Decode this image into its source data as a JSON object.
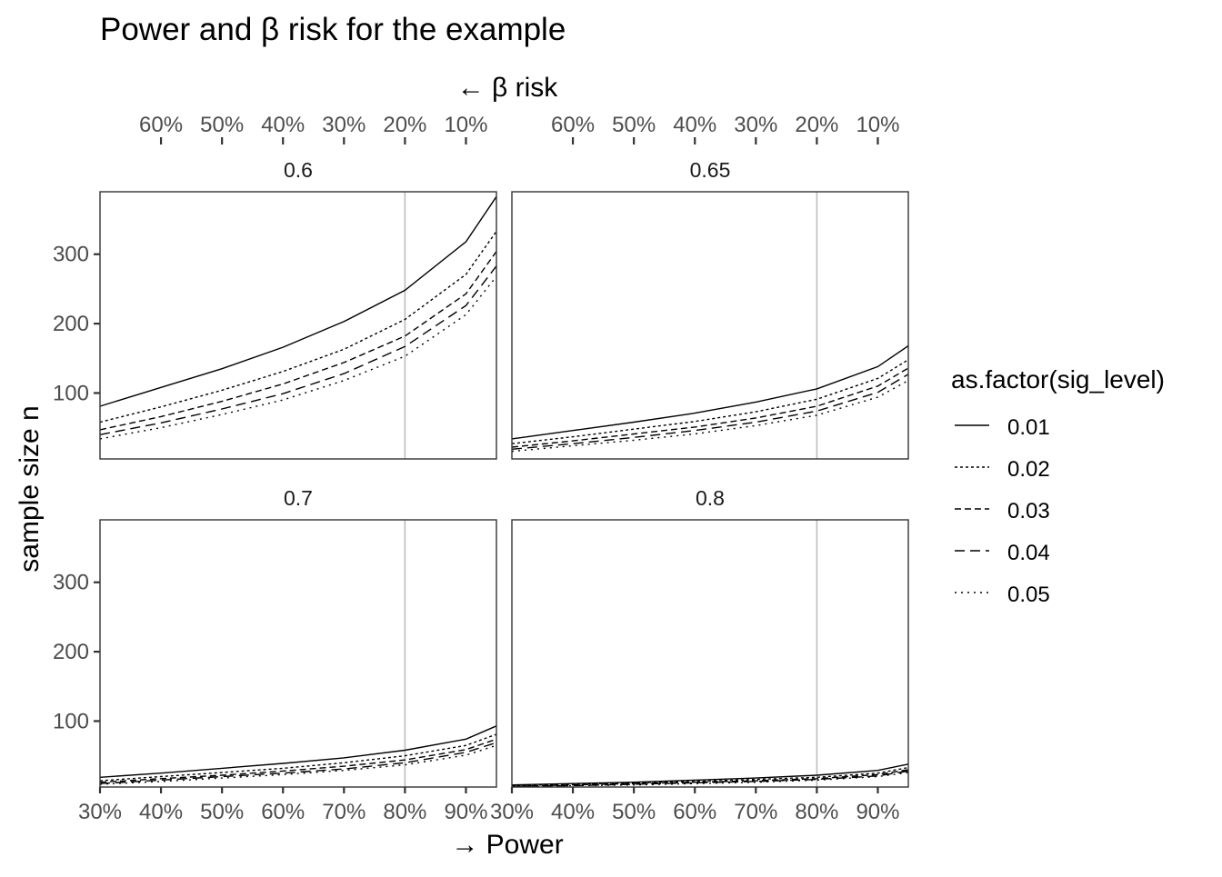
{
  "chart_data": {
    "type": "line",
    "title": "Power and β risk for the example",
    "xlabel": "→ Power",
    "secondary_xlabel": "← β risk",
    "ylabel": "sample size n",
    "xlim": [
      0.3,
      0.95
    ],
    "ylim": [
      5,
      390
    ],
    "x_ticks": [
      "30%",
      "40%",
      "50%",
      "60%",
      "70%",
      "80%",
      "90%"
    ],
    "top_ticks": [
      "60%",
      "50%",
      "40%",
      "30%",
      "20%",
      "10%"
    ],
    "y_ticks": [
      "100",
      "200",
      "300"
    ],
    "reference_line_x": 0.8,
    "grid": false,
    "legend": {
      "title": "as.factor(sig_level)",
      "position": "right",
      "entries": [
        {
          "label": "0.01",
          "dash": "solid"
        },
        {
          "label": "0.02",
          "dash": "dotted"
        },
        {
          "label": "0.03",
          "dash": "dashed-short"
        },
        {
          "label": "0.04",
          "dash": "dashed-long"
        },
        {
          "label": "0.05",
          "dash": "dotted-sparse"
        }
      ]
    },
    "x": [
      0.3,
      0.4,
      0.5,
      0.6,
      0.7,
      0.8,
      0.9,
      0.95
    ],
    "panels": [
      {
        "label": "0.6",
        "series": [
          {
            "name": "0.01",
            "values": [
              81,
              108,
              135,
              166,
              203,
              248,
              318,
              383
            ]
          },
          {
            "name": "0.02",
            "values": [
              58,
              80,
              104,
              131,
              163,
              206,
              271,
              333
            ]
          },
          {
            "name": "0.03",
            "values": [
              47,
              66,
              88,
              113,
              144,
              182,
              243,
              304
            ]
          },
          {
            "name": "0.04",
            "values": [
              40,
              57,
              77,
              99,
              128,
              167,
              226,
              283
            ]
          },
          {
            "name": "0.05",
            "values": [
              34,
              50,
              69,
              90,
              118,
              153,
              213,
              268
            ]
          }
        ]
      },
      {
        "label": "0.65",
        "series": [
          {
            "name": "0.01",
            "values": [
              34,
              46,
              58,
              71,
              87,
              106,
              138,
              168
            ]
          },
          {
            "name": "0.02",
            "values": [
              27,
              37,
              48,
              59,
              73,
              91,
              121,
              148
            ]
          },
          {
            "name": "0.03",
            "values": [
              22,
              31,
              41,
              51,
              64,
              81,
              110,
              136
            ]
          },
          {
            "name": "0.04",
            "values": [
              19,
              27,
              36,
              46,
              58,
              74,
              101,
              127
            ]
          },
          {
            "name": "0.05",
            "values": [
              16,
              24,
              32,
              41,
              53,
              68,
              94,
              118
            ]
          }
        ]
      },
      {
        "label": "0.7",
        "series": [
          {
            "name": "0.01",
            "values": [
              19,
              25,
              32,
              39,
              47,
              58,
              74,
              93
            ]
          },
          {
            "name": "0.02",
            "values": [
              14,
              20,
              26,
              32,
              40,
              50,
              65,
              81
            ]
          },
          {
            "name": "0.03",
            "values": [
              12,
              17,
              22,
              28,
              35,
              44,
              59,
              74
            ]
          },
          {
            "name": "0.04",
            "values": [
              10,
              15,
              20,
              25,
              31,
              40,
              55,
              69
            ]
          },
          {
            "name": "0.05",
            "values": [
              9,
              13,
              18,
              23,
              29,
              37,
              51,
              65
            ]
          }
        ]
      },
      {
        "label": "0.8",
        "series": [
          {
            "name": "0.01",
            "values": [
              8,
              10,
              12,
              15,
              18,
              22,
              29,
              38
            ]
          },
          {
            "name": "0.02",
            "values": [
              7,
              9,
              11,
              13,
              16,
              19,
              25,
              33
            ]
          },
          {
            "name": "0.03",
            "values": [
              6,
              8,
              10,
              12,
              14,
              17,
              23,
              30
            ]
          },
          {
            "name": "0.04",
            "values": [
              6,
              7,
              9,
              11,
              13,
              16,
              21,
              28
            ]
          },
          {
            "name": "0.05",
            "values": [
              5,
              7,
              8,
              10,
              12,
              15,
              20,
              26
            ]
          }
        ]
      }
    ]
  }
}
